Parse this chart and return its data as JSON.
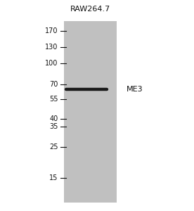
{
  "background_color": "#ffffff",
  "gel_color": "#c0c0c0",
  "fig_width": 2.76,
  "fig_height": 3.0,
  "dpi": 100,
  "lane_label": "RAW264.7",
  "lane_label_fontsize": 8,
  "band_label": "ME3",
  "band_label_fontsize": 8,
  "band_color": "#1a1a1a",
  "band_linewidth": 3.2,
  "markers": [
    {
      "label": "170",
      "kda": 170
    },
    {
      "label": "130",
      "kda": 130
    },
    {
      "label": "100",
      "kda": 100
    },
    {
      "label": "70",
      "kda": 70
    },
    {
      "label": "55",
      "kda": 55
    },
    {
      "label": "40",
      "kda": 40
    },
    {
      "label": "35",
      "kda": 35
    },
    {
      "label": "25",
      "kda": 25
    },
    {
      "label": "15",
      "kda": 15
    }
  ],
  "band_kda": 65,
  "marker_fontsize": 7,
  "marker_color": "#111111",
  "kda_min": 10,
  "kda_max": 200
}
